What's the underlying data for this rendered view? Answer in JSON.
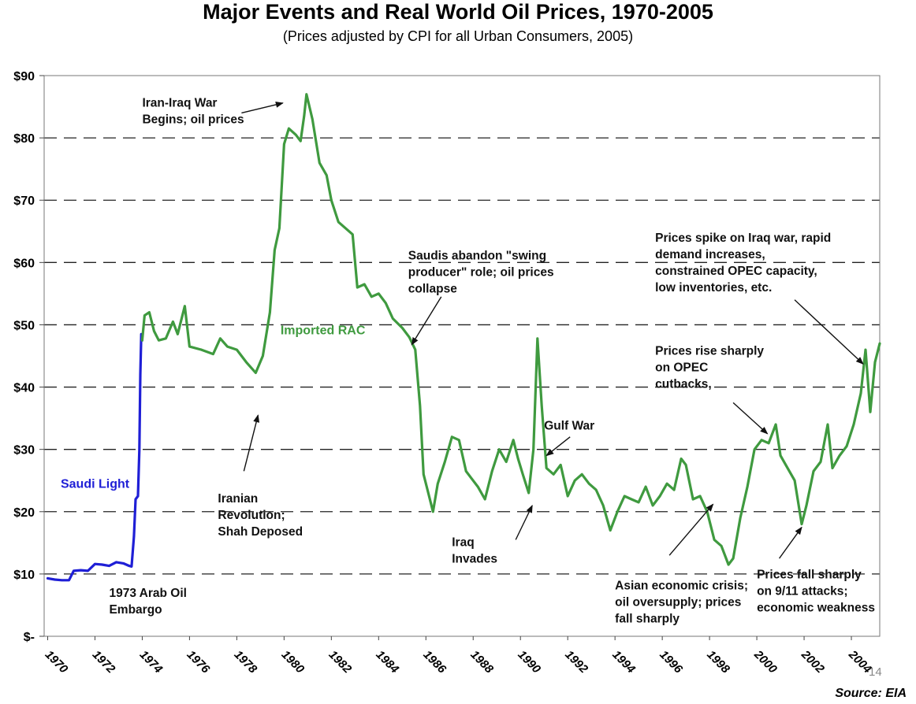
{
  "chart_data": {
    "type": "line",
    "title": "Major Events and Real World Oil Prices, 1970-2005",
    "subtitle": "(Prices adjusted by CPI for all Urban Consumers, 2005)",
    "xlabel": "",
    "ylabel": "",
    "xlim": [
      1969.85,
      2005.2
    ],
    "ylim": [
      0,
      90
    ],
    "yticks": [
      0,
      10,
      20,
      30,
      40,
      50,
      60,
      70,
      80,
      90
    ],
    "ytick_labels": [
      "$-",
      "$10",
      "$20",
      "$30",
      "$40",
      "$50",
      "$60",
      "$70",
      "$80",
      "$90"
    ],
    "xticks": [
      1970,
      1972,
      1974,
      1976,
      1978,
      1980,
      1982,
      1984,
      1986,
      1988,
      1990,
      1992,
      1994,
      1996,
      1998,
      2000,
      2002,
      2004
    ],
    "xtick_labels": [
      "1970",
      "1972",
      "1974",
      "1976",
      "1978",
      "1980",
      "1982",
      "1984",
      "1986",
      "1988",
      "1990",
      "1992",
      "1994",
      "1996",
      "1998",
      "2000",
      "2002",
      "2004"
    ],
    "grid": "horizontal-dashed",
    "source": "Source: EIA",
    "series": [
      {
        "name": "Saudi Light",
        "color": "#1f1fd6",
        "points": [
          [
            1970.0,
            9.3
          ],
          [
            1970.3,
            9.1
          ],
          [
            1970.6,
            9.0
          ],
          [
            1970.9,
            9.0
          ],
          [
            1971.1,
            10.5
          ],
          [
            1971.4,
            10.6
          ],
          [
            1971.7,
            10.5
          ],
          [
            1972.0,
            11.6
          ],
          [
            1972.3,
            11.5
          ],
          [
            1972.6,
            11.3
          ],
          [
            1972.9,
            11.9
          ],
          [
            1973.2,
            11.7
          ],
          [
            1973.45,
            11.3
          ],
          [
            1973.55,
            11.2
          ],
          [
            1973.65,
            16.0
          ],
          [
            1973.72,
            22.0
          ],
          [
            1973.82,
            22.5
          ],
          [
            1973.88,
            30.0
          ],
          [
            1973.92,
            42.0
          ],
          [
            1973.96,
            48.5
          ],
          [
            1974.0,
            47.5
          ]
        ]
      },
      {
        "name": "Imported RAC",
        "color": "#3f9a3f",
        "points": [
          [
            1974.0,
            47.5
          ],
          [
            1974.1,
            51.5
          ],
          [
            1974.3,
            52.0
          ],
          [
            1974.5,
            49.0
          ],
          [
            1974.7,
            47.5
          ],
          [
            1975.0,
            47.8
          ],
          [
            1975.3,
            50.5
          ],
          [
            1975.5,
            48.5
          ],
          [
            1975.8,
            53.0
          ],
          [
            1976.0,
            46.5
          ],
          [
            1976.5,
            46.0
          ],
          [
            1977.0,
            45.3
          ],
          [
            1977.3,
            47.8
          ],
          [
            1977.6,
            46.5
          ],
          [
            1978.0,
            46.0
          ],
          [
            1978.4,
            44.0
          ],
          [
            1978.8,
            42.3
          ],
          [
            1979.1,
            45.0
          ],
          [
            1979.4,
            52.0
          ],
          [
            1979.6,
            62.0
          ],
          [
            1979.8,
            65.5
          ],
          [
            1980.0,
            79.0
          ],
          [
            1980.2,
            81.5
          ],
          [
            1980.5,
            80.5
          ],
          [
            1980.7,
            79.5
          ],
          [
            1980.85,
            83.5
          ],
          [
            1980.95,
            87.0
          ],
          [
            1981.2,
            83.0
          ],
          [
            1981.5,
            76.0
          ],
          [
            1981.8,
            74.0
          ],
          [
            1982.0,
            70.0
          ],
          [
            1982.3,
            66.5
          ],
          [
            1982.6,
            65.5
          ],
          [
            1982.9,
            64.5
          ],
          [
            1983.1,
            56.0
          ],
          [
            1983.4,
            56.5
          ],
          [
            1983.7,
            54.5
          ],
          [
            1984.0,
            55.0
          ],
          [
            1984.3,
            53.5
          ],
          [
            1984.6,
            51.0
          ],
          [
            1985.0,
            49.5
          ],
          [
            1985.3,
            48.0
          ],
          [
            1985.55,
            46.0
          ],
          [
            1985.75,
            37.0
          ],
          [
            1985.9,
            26.0
          ],
          [
            1986.1,
            23.0
          ],
          [
            1986.3,
            20.0
          ],
          [
            1986.5,
            24.5
          ],
          [
            1986.8,
            28.0
          ],
          [
            1987.1,
            32.0
          ],
          [
            1987.4,
            31.5
          ],
          [
            1987.7,
            26.5
          ],
          [
            1987.9,
            25.5
          ],
          [
            1988.2,
            24.0
          ],
          [
            1988.5,
            22.0
          ],
          [
            1988.8,
            26.5
          ],
          [
            1989.1,
            30.0
          ],
          [
            1989.4,
            28.0
          ],
          [
            1989.7,
            31.5
          ],
          [
            1989.9,
            28.5
          ],
          [
            1990.1,
            26.0
          ],
          [
            1990.35,
            23.0
          ],
          [
            1990.55,
            30.0
          ],
          [
            1990.72,
            47.8
          ],
          [
            1990.9,
            37.0
          ],
          [
            1991.1,
            27.0
          ],
          [
            1991.4,
            26.0
          ],
          [
            1991.7,
            27.5
          ],
          [
            1992.0,
            22.5
          ],
          [
            1992.3,
            25.0
          ],
          [
            1992.6,
            26.0
          ],
          [
            1992.9,
            24.5
          ],
          [
            1993.2,
            23.5
          ],
          [
            1993.5,
            21.0
          ],
          [
            1993.8,
            17.0
          ],
          [
            1994.1,
            20.0
          ],
          [
            1994.4,
            22.5
          ],
          [
            1994.7,
            22.0
          ],
          [
            1995.0,
            21.5
          ],
          [
            1995.3,
            24.0
          ],
          [
            1995.6,
            21.0
          ],
          [
            1995.9,
            22.5
          ],
          [
            1996.2,
            24.5
          ],
          [
            1996.5,
            23.5
          ],
          [
            1996.8,
            28.5
          ],
          [
            1997.0,
            27.5
          ],
          [
            1997.3,
            22.0
          ],
          [
            1997.6,
            22.5
          ],
          [
            1997.9,
            20.0
          ],
          [
            1998.2,
            15.5
          ],
          [
            1998.5,
            14.5
          ],
          [
            1998.8,
            11.5
          ],
          [
            1999.0,
            12.5
          ],
          [
            1999.3,
            19.0
          ],
          [
            1999.6,
            24.0
          ],
          [
            1999.9,
            30.0
          ],
          [
            2000.2,
            31.5
          ],
          [
            2000.5,
            31.0
          ],
          [
            2000.8,
            34.0
          ],
          [
            2001.0,
            29.0
          ],
          [
            2001.3,
            27.0
          ],
          [
            2001.6,
            25.0
          ],
          [
            2001.9,
            18.0
          ],
          [
            2002.1,
            21.0
          ],
          [
            2002.4,
            26.5
          ],
          [
            2002.7,
            28.0
          ],
          [
            2003.0,
            34.0
          ],
          [
            2003.2,
            27.0
          ],
          [
            2003.5,
            29.0
          ],
          [
            2003.8,
            30.5
          ],
          [
            2004.1,
            34.0
          ],
          [
            2004.4,
            39.0
          ],
          [
            2004.6,
            46.0
          ],
          [
            2004.8,
            36.0
          ],
          [
            2005.0,
            44.0
          ],
          [
            2005.2,
            47.0
          ]
        ]
      }
    ],
    "series_labels": [
      {
        "text": "Saudi Light",
        "x": 1970.55,
        "y": 23.8,
        "color": "#1f1fd6"
      },
      {
        "text": "Imported RAC",
        "x": 1979.85,
        "y": 48.5,
        "color": "#3f9a3f"
      }
    ],
    "annotations": [
      {
        "lines": [
          "Iran-Iraq War",
          "Begins; oil prices"
        ],
        "x": 1974.0,
        "y": 85.0,
        "arrow": {
          "from": [
            1978.2,
            84.0
          ],
          "to": [
            1979.95,
            85.6
          ]
        }
      },
      {
        "lines": [
          "Iranian",
          "Revolution;",
          "Shah Deposed"
        ],
        "x": 1977.2,
        "y": 21.5,
        "arrow": {
          "from": [
            1978.3,
            26.5
          ],
          "to": [
            1978.9,
            35.5
          ]
        }
      },
      {
        "lines": [
          "1973 Arab Oil",
          "Embargo"
        ],
        "x": 1972.6,
        "y": 6.3
      },
      {
        "lines": [
          "Saudis abandon \"swing",
          "producer\" role; oil prices",
          "collapse"
        ],
        "x": 1985.25,
        "y": 60.5,
        "arrow": {
          "from": [
            1986.65,
            54.5
          ],
          "to": [
            1985.4,
            46.8
          ]
        }
      },
      {
        "lines": [
          "Iraq",
          "Invades"
        ],
        "x": 1987.1,
        "y": 14.5,
        "arrow": {
          "from": [
            1989.8,
            15.5
          ],
          "to": [
            1990.5,
            21.0
          ]
        }
      },
      {
        "lines": [
          "Gulf War"
        ],
        "x": 1991.0,
        "y": 33.2,
        "arrow": {
          "from": [
            1992.1,
            32.0
          ],
          "to": [
            1991.1,
            29.0
          ]
        }
      },
      {
        "lines": [
          "Asian economic crisis;",
          "oil oversupply; prices",
          "fall sharply"
        ],
        "x": 1994.0,
        "y": 7.5,
        "arrow": {
          "from": [
            1996.3,
            13.0
          ],
          "to": [
            1998.15,
            21.2
          ]
        }
      },
      {
        "lines": [
          "Prices spike on Iraq war, rapid",
          "demand increases,",
          "constrained OPEC  capacity,",
          "low inventories, etc."
        ],
        "x": 1995.7,
        "y": 63.3,
        "arrow": {
          "from": [
            2001.6,
            54.0
          ],
          "to": [
            2004.5,
            43.7
          ]
        }
      },
      {
        "lines": [
          "Prices rise sharply",
          "on OPEC",
          "cutbacks,"
        ],
        "x": 1995.7,
        "y": 45.2,
        "arrow": {
          "from": [
            1999.0,
            37.5
          ],
          "to": [
            2000.45,
            32.5
          ]
        }
      },
      {
        "lines": [
          "Prices fall sharply",
          "on 9/11 attacks;",
          "economic weakness"
        ],
        "x": 2000.0,
        "y": 9.3,
        "arrow": {
          "from": [
            2000.95,
            12.5
          ],
          "to": [
            2001.9,
            17.5
          ]
        }
      }
    ],
    "page_number": "14"
  }
}
